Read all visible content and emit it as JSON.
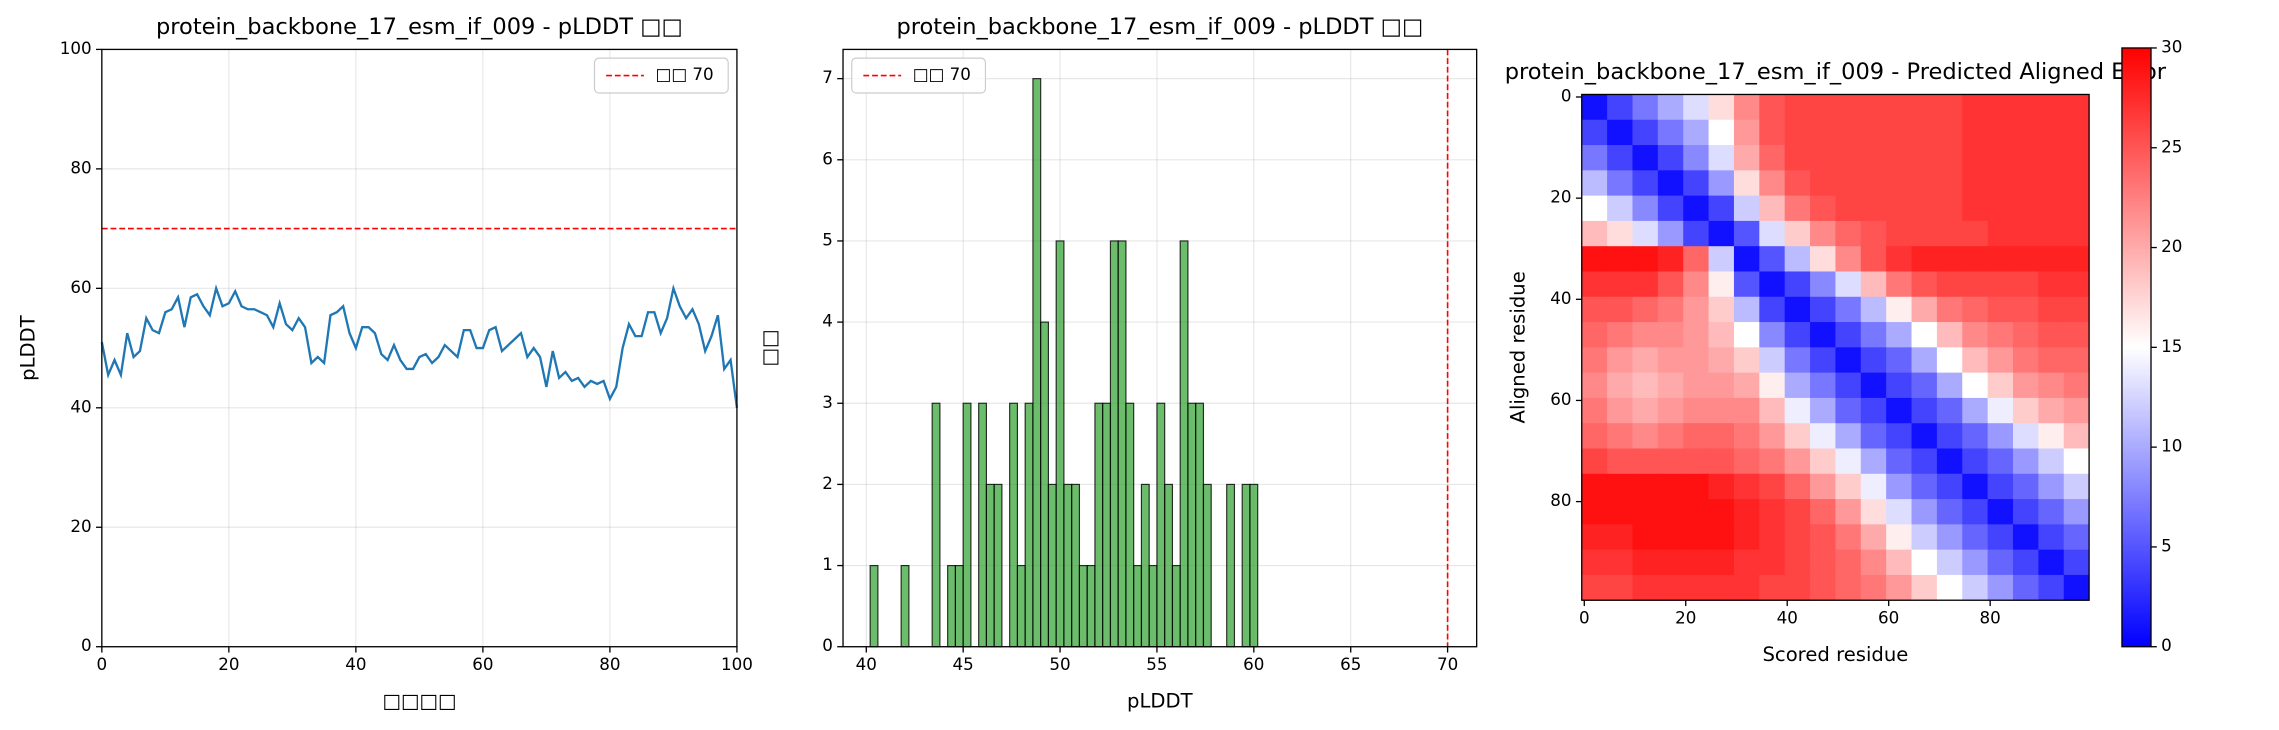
{
  "chart_data": [
    {
      "type": "line",
      "title": "protein_backbone_17_esm_if_009 - pLDDT □□",
      "x_label": "□□□□",
      "y_label": "pLDDT",
      "x": [
        0,
        1,
        2,
        3,
        4,
        5,
        6,
        7,
        8,
        9,
        10,
        11,
        12,
        13,
        14,
        15,
        16,
        17,
        18,
        19,
        20,
        21,
        22,
        23,
        24,
        25,
        26,
        27,
        28,
        29,
        30,
        31,
        32,
        33,
        34,
        35,
        36,
        37,
        38,
        39,
        40,
        41,
        42,
        43,
        44,
        45,
        46,
        47,
        48,
        49,
        50,
        51,
        52,
        53,
        54,
        55,
        56,
        57,
        58,
        59,
        60,
        61,
        62,
        63,
        64,
        65,
        66,
        67,
        68,
        69,
        70,
        71,
        72,
        73,
        74,
        75,
        76,
        77,
        78,
        79,
        80,
        81,
        82,
        83,
        84,
        85,
        86,
        87,
        88,
        89,
        90,
        91,
        92,
        93,
        94,
        95,
        96,
        97,
        98,
        99,
        100
      ],
      "values": [
        51,
        45.5,
        48,
        45.5,
        52.5,
        48.5,
        49.5,
        55,
        53,
        52.5,
        56,
        56.5,
        58.5,
        53.5,
        58.5,
        59,
        57,
        55.5,
        60,
        57,
        57.5,
        59.5,
        57,
        56.5,
        56.5,
        56,
        55.5,
        53.5,
        57.5,
        54,
        53,
        55,
        53.5,
        47.5,
        48.5,
        47.5,
        55.5,
        56,
        57,
        52.5,
        50,
        53.5,
        53.5,
        52.5,
        49,
        48,
        50.5,
        48,
        46.5,
        46.5,
        48.5,
        49,
        47.5,
        48.5,
        50.5,
        49.5,
        48.5,
        53,
        53,
        50,
        50,
        53,
        53.5,
        49.5,
        50.5,
        51.5,
        52.5,
        48.5,
        50,
        48.5,
        43.5,
        49.5,
        45,
        46,
        44.5,
        45,
        43.5,
        44.5,
        44,
        44.5,
        41.5,
        43.5,
        50,
        54,
        52,
        52,
        56,
        56,
        52.5,
        55,
        60,
        57,
        55,
        56.5,
        54,
        49.5,
        52,
        55.5,
        46.5,
        48,
        40
      ],
      "color": "#1f77b4",
      "threshold": {
        "name": "□□ 70",
        "value": 70,
        "color": "#ff0000"
      },
      "legend": "upper right",
      "xlim": [
        0,
        100
      ],
      "ylim": [
        0,
        100
      ],
      "xticks": [
        0,
        20,
        40,
        60,
        80,
        100
      ],
      "yticks": [
        0,
        20,
        40,
        60,
        80,
        100
      ],
      "grid": true
    },
    {
      "type": "histogram",
      "title": "protein_backbone_17_esm_if_009 - pLDDT □□",
      "x_label": "pLDDT",
      "y_label": "□□",
      "bins": [
        40.2,
        40.6,
        41.0,
        41.4,
        41.8,
        42.2,
        42.6,
        43.0,
        43.4,
        43.8,
        44.2,
        44.6,
        45.0,
        45.4,
        45.8,
        46.2,
        46.6,
        47.0,
        47.4,
        47.8,
        48.2,
        48.6,
        49.0,
        49.4,
        49.8,
        50.2,
        50.6,
        51.0,
        51.4,
        51.8,
        52.2,
        52.6,
        53.0,
        53.4,
        53.8,
        54.2,
        54.6,
        55.0,
        55.4,
        55.8,
        56.2,
        56.6,
        57.0,
        57.4,
        57.8,
        58.2,
        58.6,
        59.0,
        59.4,
        59.8,
        60.2
      ],
      "values": [
        1,
        0,
        0,
        0,
        1,
        0,
        0,
        0,
        3,
        0,
        1,
        1,
        3,
        0,
        3,
        2,
        2,
        0,
        3,
        1,
        3,
        7,
        4,
        2,
        5,
        2,
        2,
        1,
        1,
        3,
        3,
        5,
        5,
        3,
        1,
        2,
        1,
        3,
        2,
        1,
        5,
        3,
        3,
        2,
        0,
        0,
        2,
        0,
        2,
        2
      ],
      "color": "#2ca02c",
      "threshold": {
        "name": "□□ 70",
        "value": 70,
        "color": "#ff0000"
      },
      "legend": "upper left",
      "xlim": [
        38.8,
        71.5
      ],
      "ylim": [
        0,
        7.36
      ],
      "xticks": [
        40,
        45,
        50,
        55,
        60,
        65,
        70
      ],
      "yticks": [
        0,
        1,
        2,
        3,
        4,
        5,
        6,
        7
      ],
      "grid": true
    },
    {
      "type": "heatmap",
      "title": "protein_backbone_17_esm_if_009 - Predicted Aligned Error",
      "x_label": "Scored residue",
      "y_label": "Aligned residue",
      "x": [
        0,
        5,
        10,
        15,
        20,
        25,
        30,
        35,
        40,
        45,
        50,
        55,
        60,
        65,
        70,
        75,
        80,
        85,
        90,
        95
      ],
      "y": [
        0,
        5,
        10,
        15,
        20,
        25,
        30,
        35,
        40,
        45,
        50,
        55,
        60,
        65,
        70,
        75,
        80,
        85,
        90,
        95
      ],
      "z": [
        [
          1,
          4,
          7,
          10,
          13,
          17,
          22,
          25,
          26,
          26,
          26,
          26,
          26,
          26,
          26,
          27,
          27,
          27,
          27,
          27
        ],
        [
          4,
          1,
          4,
          7,
          10,
          15,
          21,
          25,
          26,
          26,
          26,
          26,
          26,
          26,
          26,
          27,
          27,
          27,
          27,
          27
        ],
        [
          7,
          4,
          1,
          4,
          8,
          13,
          20,
          24,
          26,
          26,
          26,
          26,
          26,
          26,
          26,
          27,
          27,
          27,
          27,
          27
        ],
        [
          11,
          7,
          4,
          1,
          4,
          9,
          17,
          22,
          25,
          26,
          26,
          26,
          26,
          26,
          26,
          27,
          27,
          27,
          27,
          27
        ],
        [
          15,
          12,
          8,
          4,
          1,
          4,
          12,
          19,
          23,
          25,
          26,
          26,
          26,
          26,
          26,
          27,
          27,
          27,
          27,
          27
        ],
        [
          19,
          17,
          13,
          9,
          4,
          1,
          5,
          13,
          18,
          22,
          24,
          25,
          26,
          26,
          26,
          26,
          27,
          27,
          27,
          27
        ],
        [
          29,
          29,
          29,
          28,
          24,
          12,
          1,
          5,
          11,
          17,
          22,
          25,
          27,
          28,
          28,
          28,
          28,
          28,
          28,
          28
        ],
        [
          27,
          27,
          27,
          25,
          22,
          16,
          5,
          1,
          4,
          8,
          13,
          19,
          23,
          25,
          26,
          26,
          26,
          26,
          27,
          27
        ],
        [
          25,
          25,
          24,
          23,
          21,
          18,
          11,
          4,
          1,
          4,
          7,
          11,
          16,
          20,
          23,
          24,
          25,
          25,
          26,
          26
        ],
        [
          24,
          23,
          22,
          22,
          21,
          19,
          15,
          8,
          4,
          1,
          4,
          7,
          10,
          15,
          19,
          22,
          23,
          24,
          25,
          25
        ],
        [
          23,
          21,
          20,
          21,
          21,
          20,
          18,
          12,
          7,
          4,
          1,
          4,
          6,
          10,
          15,
          19,
          21,
          23,
          24,
          24
        ],
        [
          22,
          20,
          19,
          20,
          21,
          21,
          20,
          16,
          10,
          7,
          4,
          1,
          4,
          6,
          10,
          15,
          18,
          21,
          22,
          23
        ],
        [
          23,
          21,
          20,
          21,
          22,
          22,
          22,
          19,
          14,
          10,
          6,
          4,
          1,
          4,
          6,
          10,
          14,
          18,
          20,
          21
        ],
        [
          24,
          23,
          22,
          23,
          24,
          24,
          23,
          21,
          18,
          14,
          10,
          6,
          4,
          1,
          4,
          6,
          9,
          13,
          16,
          19
        ],
        [
          26,
          25,
          25,
          25,
          25,
          25,
          24,
          23,
          21,
          18,
          14,
          10,
          6,
          4,
          1,
          4,
          6,
          9,
          12,
          15
        ],
        [
          29,
          29,
          29,
          29,
          29,
          28,
          27,
          26,
          24,
          21,
          18,
          14,
          9,
          6,
          4,
          1,
          4,
          6,
          9,
          12
        ],
        [
          29,
          29,
          29,
          29,
          29,
          29,
          28,
          27,
          26,
          24,
          21,
          17,
          13,
          9,
          6,
          4,
          1,
          4,
          6,
          9
        ],
        [
          28,
          28,
          29,
          29,
          29,
          29,
          28,
          27,
          26,
          25,
          23,
          20,
          16,
          12,
          9,
          6,
          4,
          1,
          4,
          6
        ],
        [
          27,
          27,
          28,
          28,
          28,
          28,
          27,
          27,
          26,
          25,
          24,
          22,
          19,
          15,
          12,
          9,
          6,
          4,
          1,
          4
        ],
        [
          26,
          26,
          27,
          27,
          27,
          27,
          27,
          26,
          26,
          25,
          24,
          23,
          21,
          18,
          15,
          12,
          9,
          6,
          4,
          1
        ]
      ],
      "colormap": "bwr",
      "clim": [
        0,
        30
      ],
      "cticks": [
        0,
        5,
        10,
        15,
        20,
        25,
        30
      ],
      "xlim": [
        -0.5,
        99.5
      ],
      "ylim": [
        99.5,
        -0.5
      ],
      "xticks": [
        0,
        20,
        40,
        60,
        80
      ],
      "yticks": [
        0,
        20,
        40,
        60,
        80
      ],
      "grid": false
    }
  ]
}
